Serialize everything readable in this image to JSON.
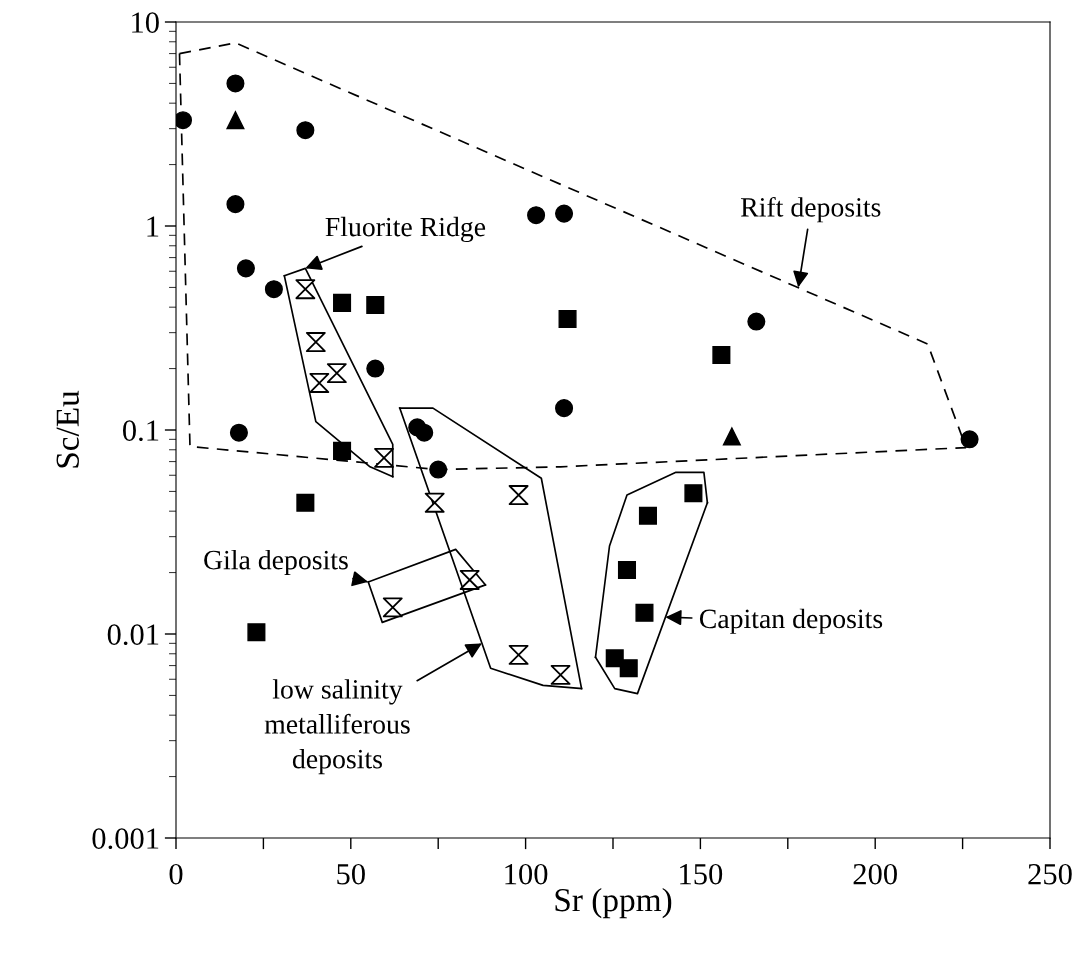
{
  "chart_data": {
    "type": "scatter",
    "xlabel": "Sr (ppm)",
    "ylabel": "Sc/Eu",
    "log": "y",
    "xlim": [
      0,
      250
    ],
    "ylim": [
      0.001,
      10
    ],
    "xticks": [
      0,
      {
        "value": 25,
        "label": null
      },
      50,
      {
        "value": 75,
        "label": null
      },
      100,
      {
        "value": 125,
        "label": null
      },
      150,
      {
        "value": 175,
        "label": null
      },
      200,
      {
        "value": 225,
        "label": null
      },
      250
    ],
    "yticks": [
      0.001,
      0.01,
      0.1,
      1,
      10
    ],
    "grid": false,
    "legend": false,
    "series": [
      {
        "type": "line",
        "line_style": "dashed",
        "color": "#000000",
        "x": [
          1,
          17,
          215,
          226
        ],
        "values": [
          7.0,
          7.9,
          0.264,
          0.082
        ]
      },
      {
        "type": "line",
        "line_style": "dashed",
        "color": "#000000",
        "x": [
          1,
          4,
          75,
          110,
          226
        ],
        "values": [
          7.0,
          0.083,
          0.064,
          0.066,
          0.082
        ]
      },
      {
        "type": "line",
        "line_style": "solid",
        "color": "#000000",
        "x": [
          31,
          37,
          62,
          62
        ],
        "values": [
          0.57,
          0.62,
          0.085,
          0.059
        ]
      },
      {
        "type": "line",
        "line_style": "solid",
        "color": "#000000",
        "x": [
          31,
          40,
          55.5,
          62
        ],
        "values": [
          0.57,
          0.11,
          0.066,
          0.059
        ]
      },
      {
        "type": "line",
        "line_style": "solid",
        "color": "#000000",
        "x": [
          64,
          73.5,
          104.5,
          116
        ],
        "values": [
          0.128,
          0.128,
          0.058,
          0.0054
        ]
      },
      {
        "type": "line",
        "line_style": "solid",
        "color": "#000000",
        "x": [
          64,
          90,
          105,
          116
        ],
        "values": [
          0.128,
          0.0068,
          0.0056,
          0.0054
        ]
      },
      {
        "type": "line",
        "line_style": "solid",
        "color": "#000000",
        "x": [
          55,
          80,
          88.5
        ],
        "values": [
          0.018,
          0.026,
          0.0174
        ]
      },
      {
        "type": "line",
        "line_style": "solid",
        "color": "#000000",
        "x": [
          55,
          59,
          88.5
        ],
        "values": [
          0.018,
          0.0114,
          0.0174
        ]
      },
      {
        "type": "line",
        "line_style": "solid",
        "color": "#000000",
        "x": [
          120,
          124,
          129,
          143,
          151,
          152
        ],
        "values": [
          0.0077,
          0.027,
          0.048,
          0.062,
          0.062,
          0.044
        ]
      },
      {
        "type": "line",
        "line_style": "solid",
        "color": "#000000",
        "x": [
          120,
          125.5,
          132,
          152
        ],
        "values": [
          0.0077,
          0.0054,
          0.0051,
          0.044
        ]
      },
      {
        "marker": "circle",
        "color": "#000000",
        "x": [
          2,
          17,
          17,
          37,
          20,
          28,
          18,
          57,
          103,
          111,
          111,
          69,
          71,
          75,
          166,
          227
        ],
        "values": [
          3.3,
          5.0,
          1.28,
          2.95,
          0.62,
          0.49,
          0.097,
          0.2,
          1.13,
          1.15,
          0.128,
          0.103,
          0.097,
          0.064,
          0.34,
          0.09
        ]
      },
      {
        "marker": "triangle",
        "color": "#000000",
        "x": [
          17,
          159
        ],
        "values": [
          3.3,
          0.093
        ]
      },
      {
        "marker": "square",
        "color": "#000000",
        "x": [
          47.5,
          57,
          112,
          156,
          47.5,
          37,
          23,
          148,
          135,
          129,
          134,
          125.5,
          129.5
        ],
        "values": [
          0.42,
          0.41,
          0.35,
          0.233,
          0.079,
          0.044,
          0.0102,
          0.049,
          0.038,
          0.0206,
          0.0127,
          0.0076,
          0.0068
        ]
      },
      {
        "color": "#000000",
        "x": [
          37,
          40,
          46,
          41,
          59.5,
          74,
          98,
          84,
          62,
          98,
          110
        ],
        "values": [
          0.49,
          0.27,
          0.19,
          0.17,
          0.073,
          0.044,
          0.048,
          0.0184,
          0.0135,
          0.0079,
          0.0063
        ]
      }
    ],
    "annotations": [
      {
        "text": "Fluorite Ridge",
        "x": 37,
        "y": 0.62
      },
      {
        "text": "Rift deposits",
        "x": 178,
        "y": 0.5
      },
      {
        "text": "Gila deposits",
        "x": 55,
        "y": 0.018
      },
      {
        "text": "Capitan deposits",
        "x": 140,
        "y": 0.0121
      },
      {
        "text": "low salinity\nmetalliferous\ndeposits",
        "x": 87.5,
        "y": 0.009
      }
    ]
  }
}
